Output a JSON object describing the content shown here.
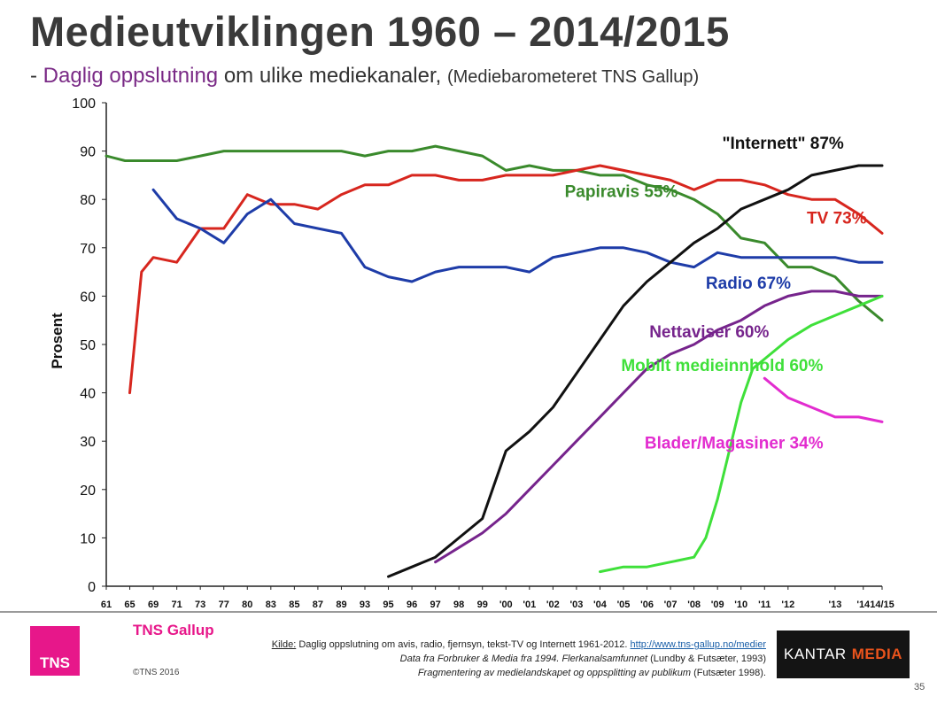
{
  "header": {
    "title": "Medieutviklingen 1960 – 2014/2015",
    "subtitle_prefix": "- ",
    "subtitle_highlight": "Daglig oppslutning",
    "subtitle_rest": " om ulike mediekanaler,",
    "subtitle_source": "(Mediebarometeret TNS Gallup)"
  },
  "chart_data": {
    "type": "line",
    "ylabel": "Prosent",
    "ylim": [
      0,
      100
    ],
    "yticks": [
      0,
      10,
      20,
      30,
      40,
      50,
      60,
      70,
      80,
      90,
      100
    ],
    "grid": false,
    "categories": [
      "61",
      "65",
      "69",
      "71",
      "73",
      "77",
      "80",
      "83",
      "85",
      "87",
      "89",
      "93",
      "95",
      "96",
      "97",
      "98",
      "99",
      "'00",
      "'01",
      "'02",
      "'03",
      "'04",
      "'05",
      "'06",
      "'07",
      "'08",
      "'09",
      "'10",
      "'11",
      "'12",
      "'13",
      "'14",
      "'14/15"
    ],
    "xtick_labels": [
      "61",
      "65",
      "69",
      "71",
      "73",
      "77",
      "80",
      "83",
      "85",
      "87",
      "89",
      "93",
      "95",
      "96",
      "97",
      "98",
      "99",
      "'00",
      "'01",
      "'02",
      "'03",
      "'04",
      "'05",
      "'06",
      "'07",
      "'08",
      "'09",
      "'10",
      "'11",
      "'12",
      "'13",
      "'14",
      "14/15"
    ],
    "xtick_positions": [
      0,
      1,
      2,
      3,
      4,
      5,
      6,
      7,
      8,
      9,
      10,
      11,
      12,
      13,
      14,
      15,
      16,
      17,
      18,
      19,
      20,
      21,
      22,
      23,
      24,
      25,
      26,
      27,
      28,
      29,
      31,
      32.2,
      33
    ],
    "x_domain": [
      0,
      33
    ],
    "series": [
      {
        "name": "Papiravis 55%",
        "color": "#3a8a2c",
        "label_color": "#3a8a2c",
        "label_x": 19.5,
        "label_y": 80.5,
        "points": [
          [
            0,
            89
          ],
          [
            0.8,
            88
          ],
          [
            2,
            88
          ],
          [
            3,
            88
          ],
          [
            4,
            89
          ],
          [
            5,
            90
          ],
          [
            6,
            90
          ],
          [
            7,
            90
          ],
          [
            8,
            90
          ],
          [
            9,
            90
          ],
          [
            10,
            90
          ],
          [
            11,
            89
          ],
          [
            12,
            90
          ],
          [
            13,
            90
          ],
          [
            14,
            91
          ],
          [
            15,
            90
          ],
          [
            16,
            89
          ],
          [
            17,
            86
          ],
          [
            18,
            87
          ],
          [
            19,
            86
          ],
          [
            20,
            86
          ],
          [
            21,
            85
          ],
          [
            22,
            85
          ],
          [
            23,
            83
          ],
          [
            24,
            82
          ],
          [
            25,
            80
          ],
          [
            26,
            77
          ],
          [
            27,
            72
          ],
          [
            28,
            71
          ],
          [
            29,
            66
          ],
          [
            30,
            66
          ],
          [
            31,
            64
          ],
          [
            32,
            59
          ],
          [
            33,
            55
          ]
        ]
      },
      {
        "name": "TV 73%",
        "color": "#d7261e",
        "label_color": "#d7261e",
        "label_x": 29.8,
        "label_y": 75,
        "points": [
          [
            1,
            40
          ],
          [
            1.5,
            65
          ],
          [
            2,
            68
          ],
          [
            3,
            67
          ],
          [
            4,
            74
          ],
          [
            5,
            74
          ],
          [
            6,
            81
          ],
          [
            7,
            79
          ],
          [
            8,
            79
          ],
          [
            9,
            78
          ],
          [
            10,
            81
          ],
          [
            11,
            83
          ],
          [
            12,
            83
          ],
          [
            13,
            85
          ],
          [
            14,
            85
          ],
          [
            15,
            84
          ],
          [
            16,
            84
          ],
          [
            17,
            85
          ],
          [
            18,
            85
          ],
          [
            19,
            85
          ],
          [
            20,
            86
          ],
          [
            21,
            87
          ],
          [
            22,
            86
          ],
          [
            23,
            85
          ],
          [
            24,
            84
          ],
          [
            25,
            82
          ],
          [
            26,
            84
          ],
          [
            27,
            84
          ],
          [
            28,
            83
          ],
          [
            29,
            81
          ],
          [
            30,
            80
          ],
          [
            31,
            80
          ],
          [
            32,
            77
          ],
          [
            33,
            73
          ]
        ]
      },
      {
        "name": "Radio 67%",
        "color": "#1e3ca8",
        "label_color": "#1e3ca8",
        "label_x": 25.5,
        "label_y": 61.5,
        "points": [
          [
            2,
            82
          ],
          [
            3,
            76
          ],
          [
            4,
            74
          ],
          [
            5,
            71
          ],
          [
            6,
            77
          ],
          [
            7,
            80
          ],
          [
            8,
            75
          ],
          [
            9,
            74
          ],
          [
            10,
            73
          ],
          [
            11,
            66
          ],
          [
            12,
            64
          ],
          [
            13,
            63
          ],
          [
            14,
            65
          ],
          [
            15,
            66
          ],
          [
            16,
            66
          ],
          [
            17,
            66
          ],
          [
            18,
            65
          ],
          [
            19,
            68
          ],
          [
            20,
            69
          ],
          [
            21,
            70
          ],
          [
            22,
            70
          ],
          [
            23,
            69
          ],
          [
            24,
            67
          ],
          [
            25,
            66
          ],
          [
            26,
            69
          ],
          [
            27,
            68
          ],
          [
            28,
            68
          ],
          [
            29,
            68
          ],
          [
            30,
            68
          ],
          [
            31,
            68
          ],
          [
            32,
            67
          ],
          [
            33,
            67
          ]
        ]
      },
      {
        "name": "\"Internett\" 87%",
        "color": "#111111",
        "label_color": "#111111",
        "label_x": 26.2,
        "label_y": 90.5,
        "points": [
          [
            12,
            2
          ],
          [
            13,
            4
          ],
          [
            14,
            6
          ],
          [
            15,
            10
          ],
          [
            16,
            14
          ],
          [
            16.5,
            21
          ],
          [
            17,
            28
          ],
          [
            18,
            32
          ],
          [
            19,
            37
          ],
          [
            20,
            44
          ],
          [
            21,
            51
          ],
          [
            22,
            58
          ],
          [
            23,
            63
          ],
          [
            24,
            67
          ],
          [
            25,
            71
          ],
          [
            26,
            74
          ],
          [
            27,
            78
          ],
          [
            28,
            80
          ],
          [
            29,
            82
          ],
          [
            30,
            85
          ],
          [
            31,
            86
          ],
          [
            32,
            87
          ],
          [
            33,
            87
          ]
        ]
      },
      {
        "name": "Nettaviser 60%",
        "color": "#76248c",
        "label_color": "#76248c",
        "label_x": 23.1,
        "label_y": 51.5,
        "points": [
          [
            14,
            5
          ],
          [
            15,
            8
          ],
          [
            16,
            11
          ],
          [
            17,
            15
          ],
          [
            18,
            20
          ],
          [
            19,
            25
          ],
          [
            20,
            30
          ],
          [
            21,
            35
          ],
          [
            22,
            40
          ],
          [
            23,
            45
          ],
          [
            24,
            48
          ],
          [
            25,
            50
          ],
          [
            26,
            53
          ],
          [
            27,
            55
          ],
          [
            28,
            58
          ],
          [
            29,
            60
          ],
          [
            30,
            61
          ],
          [
            31,
            61
          ],
          [
            32,
            60
          ],
          [
            33,
            60
          ]
        ]
      },
      {
        "name": "Mobilt medieinnhold 60%",
        "color": "#3fe03a",
        "label_color": "#3fe03a",
        "label_x": 21.9,
        "label_y": 44.5,
        "points": [
          [
            21,
            3
          ],
          [
            22,
            4
          ],
          [
            23,
            4
          ],
          [
            24,
            5
          ],
          [
            25,
            6
          ],
          [
            25.5,
            10
          ],
          [
            26,
            18
          ],
          [
            26.5,
            28
          ],
          [
            27,
            38
          ],
          [
            27.5,
            45
          ],
          [
            28,
            47
          ],
          [
            29,
            51
          ],
          [
            30,
            54
          ],
          [
            31,
            56
          ],
          [
            32,
            58
          ],
          [
            33,
            60
          ]
        ]
      },
      {
        "name": "Blader/Magasiner 34%",
        "color": "#e22ccf",
        "label_color": "#e22ccf",
        "label_x": 22.9,
        "label_y": 28.5,
        "points": [
          [
            28,
            43
          ],
          [
            29,
            39
          ],
          [
            30,
            37
          ],
          [
            31,
            35
          ],
          [
            32,
            35
          ],
          [
            33,
            34
          ]
        ]
      }
    ]
  },
  "footer": {
    "brand": "TNS Gallup",
    "logo_text": "TNS",
    "copyright": "©TNS 2016",
    "source_label": "Kilde:",
    "source_line1": " Daglig oppslutning om avis, radio, fjernsyn, tekst-TV og Internett 1961-2012. ",
    "source_link": "http://www.tns-gallup.no/medier",
    "source_line2_italic": "Data fra Forbruker & Media fra 1994. Flerkanalsamfunnet",
    "source_line2_rest": " (Lundby & Futsæter, 1993)",
    "source_line3_italic": "Fragmentering av medielandskapet og oppsplitting av publikum",
    "source_line3_rest": " (Futsæter 1998).",
    "kantar_left": "KANTAR",
    "kantar_right": "MEDIA",
    "page_number": "35"
  }
}
